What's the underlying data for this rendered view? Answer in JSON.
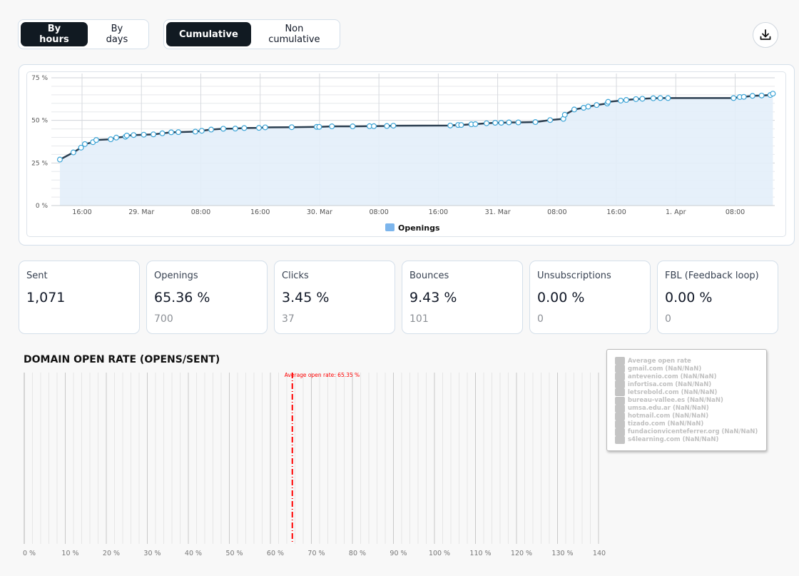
{
  "toolbar": {
    "granularity": [
      {
        "label": "By hours",
        "active": true
      },
      {
        "label": "By days",
        "active": false
      }
    ],
    "mode": [
      {
        "label": "Cumulative",
        "active": true
      },
      {
        "label": "Non cumulative",
        "active": false
      }
    ],
    "download_icon": "download-icon"
  },
  "chart_data": [
    {
      "type": "area",
      "series": [
        {
          "name": "Openings",
          "color": "#7cb5ec",
          "line_color": "#2b3e50",
          "fill": "#e3eef9",
          "points": [
            [
              "28 Mar 13:01",
              27.0
            ],
            [
              "28 Mar 14:50",
              31.2
            ],
            [
              "28 Mar 15:52",
              34.0
            ],
            [
              "28 Mar 16:23",
              36.1
            ],
            [
              "28 Mar 17:28",
              37.2
            ],
            [
              "28 Mar 17:55",
              38.5
            ],
            [
              "28 Mar 19:52",
              38.9
            ],
            [
              "28 Mar 20:37",
              39.9
            ],
            [
              "28 Mar 21:51",
              40.4
            ],
            [
              "28 Mar 22:02",
              41.1
            ],
            [
              "28 Mar 22:57",
              41.4
            ],
            [
              "29 Mar 00:19",
              41.6
            ],
            [
              "29 Mar 01:37",
              41.8
            ],
            [
              "29 Mar 02:49",
              42.4
            ],
            [
              "29 Mar 04:01",
              43.0
            ],
            [
              "29 Mar 04:59",
              43.1
            ],
            [
              "29 Mar 07:16",
              43.4
            ],
            [
              "29 Mar 08:08",
              43.9
            ],
            [
              "29 Mar 09:24",
              44.6
            ],
            [
              "29 Mar 11:02",
              45.1
            ],
            [
              "29 Mar 12:39",
              45.2
            ],
            [
              "29 Mar 13:51",
              45.5
            ],
            [
              "29 Mar 15:50",
              45.6
            ],
            [
              "29 Mar 16:41",
              45.9
            ],
            [
              "29 Mar 20:15",
              46.0
            ],
            [
              "29 Mar 23:37",
              46.2
            ],
            [
              "29 Mar 23:57",
              46.2
            ],
            [
              "30 Mar 01:40",
              46.5
            ],
            [
              "30 Mar 04:28",
              46.5
            ],
            [
              "30 Mar 06:44",
              46.6
            ],
            [
              "30 Mar 07:19",
              46.6
            ],
            [
              "30 Mar 09:04",
              46.7
            ],
            [
              "30 Mar 09:57",
              46.9
            ],
            [
              "30 Mar 17:37",
              47.0
            ],
            [
              "30 Mar 18:40",
              47.3
            ],
            [
              "30 Mar 19:05",
              47.3
            ],
            [
              "30 Mar 20:27",
              47.7
            ],
            [
              "30 Mar 21:00",
              47.8
            ],
            [
              "30 Mar 22:30",
              48.3
            ],
            [
              "30 Mar 23:40",
              48.6
            ],
            [
              "31 Mar 00:29",
              48.6
            ],
            [
              "31 Mar 01:31",
              48.8
            ],
            [
              "31 Mar 02:47",
              48.8
            ],
            [
              "31 Mar 05:05",
              49.0
            ],
            [
              "31 Mar 07:04",
              50.2
            ],
            [
              "31 Mar 08:51",
              50.9
            ],
            [
              "31 Mar 09:03",
              53.3
            ],
            [
              "31 Mar 10:19",
              56.4
            ],
            [
              "31 Mar 11:35",
              57.4
            ],
            [
              "31 Mar 12:12",
              58.1
            ],
            [
              "31 Mar 13:20",
              59.0
            ],
            [
              "31 Mar 14:46",
              59.9
            ],
            [
              "31 Mar 14:53",
              60.9
            ],
            [
              "31 Mar 16:35",
              61.6
            ],
            [
              "31 Mar 17:20",
              62.0
            ],
            [
              "31 Mar 18:38",
              62.5
            ],
            [
              "31 Mar 19:30",
              62.7
            ],
            [
              "31 Mar 20:58",
              63.0
            ],
            [
              "31 Mar 21:55",
              63.1
            ],
            [
              "31 Mar 22:57",
              63.1
            ],
            [
              "1 Apr 07:47",
              63.1
            ],
            [
              "1 Apr 08:37",
              63.7
            ],
            [
              "1 Apr 09:10",
              63.8
            ],
            [
              "1 Apr 10:20",
              64.4
            ],
            [
              "1 Apr 11:34",
              64.6
            ],
            [
              "1 Apr 12:44",
              64.9
            ],
            [
              "1 Apr 13:05",
              65.7
            ]
          ]
        }
      ],
      "x_ticks": [
        {
          "t": "28 Mar 16:00",
          "label": "16:00"
        },
        {
          "t": "29 Mar 00:00",
          "label": "29. Mar"
        },
        {
          "t": "29 Mar 08:00",
          "label": "08:00"
        },
        {
          "t": "29 Mar 16:00",
          "label": "16:00"
        },
        {
          "t": "30 Mar 00:00",
          "label": "30. Mar"
        },
        {
          "t": "30 Mar 08:00",
          "label": "08:00"
        },
        {
          "t": "30 Mar 16:00",
          "label": "16:00"
        },
        {
          "t": "31 Mar 00:00",
          "label": "31. Mar"
        },
        {
          "t": "31 Mar 08:00",
          "label": "08:00"
        },
        {
          "t": "31 Mar 16:00",
          "label": "16:00"
        },
        {
          "t": "1 Apr 00:00",
          "label": "1. Apr"
        },
        {
          "t": "1 Apr 08:00",
          "label": "08:00"
        }
      ],
      "xlim": [
        "28 Mar 11:52",
        "1 Apr 13:20"
      ],
      "y_ticks": [
        {
          "v": 0,
          "label": "0 %"
        },
        {
          "v": 25,
          "label": "25 %"
        },
        {
          "v": 50,
          "label": "50 %"
        },
        {
          "v": 75,
          "label": "75 %"
        }
      ],
      "ylim": [
        0,
        75
      ],
      "grid": true,
      "legend": "bottom-center"
    },
    {
      "type": "bar",
      "title": "DOMAIN OPEN RATE (OPENS/SENT)",
      "orientation": "horizontal",
      "xlim": [
        0,
        141
      ],
      "x_ticks": [
        {
          "v": 0,
          "label": "0 %"
        },
        {
          "v": 10,
          "label": "10 %"
        },
        {
          "v": 20,
          "label": "20 %"
        },
        {
          "v": 30,
          "label": "30 %"
        },
        {
          "v": 40,
          "label": "40 %"
        },
        {
          "v": 50,
          "label": "50 %"
        },
        {
          "v": 60,
          "label": "60 %"
        },
        {
          "v": 70,
          "label": "70 %"
        },
        {
          "v": 80,
          "label": "80 %"
        },
        {
          "v": 90,
          "label": "90 %"
        },
        {
          "v": 100,
          "label": "100 %"
        },
        {
          "v": 110,
          "label": "110 %"
        },
        {
          "v": 120,
          "label": "120 %"
        },
        {
          "v": 130,
          "label": "130 %"
        },
        {
          "v": 140,
          "label": "140 %"
        }
      ],
      "plot_line": {
        "value": 65.35,
        "label": "Average open rate: 65.35 %",
        "color": "#ff0000"
      },
      "legend": "top-right",
      "legend_items": [
        "Average open rate",
        "gmail.com (NaN/NaN)",
        "antevenio.com (NaN/NaN)",
        "infortisa.com (NaN/NaN)",
        "letsrebold.com (NaN/NaN)",
        "bureau-vallee.es (NaN/NaN)",
        "umsa.edu.ar (NaN/NaN)",
        "hotmail.com (NaN/NaN)",
        "tizado.com (NaN/NaN)",
        "fundacionvicenteferrer.org (NaN/NaN)",
        "s4learning.com (NaN/NaN)"
      ]
    }
  ],
  "stats": [
    {
      "label": "Sent",
      "value": "1,071",
      "sub": ""
    },
    {
      "label": "Openings",
      "value": "65.36 %",
      "sub": "700"
    },
    {
      "label": "Clicks",
      "value": "3.45 %",
      "sub": "37"
    },
    {
      "label": "Bounces",
      "value": "9.43 %",
      "sub": "101"
    },
    {
      "label": "Unsubscriptions",
      "value": "0.00 %",
      "sub": "0"
    },
    {
      "label": "FBL (Feedback loop)",
      "value": "0.00 %",
      "sub": "0"
    }
  ]
}
